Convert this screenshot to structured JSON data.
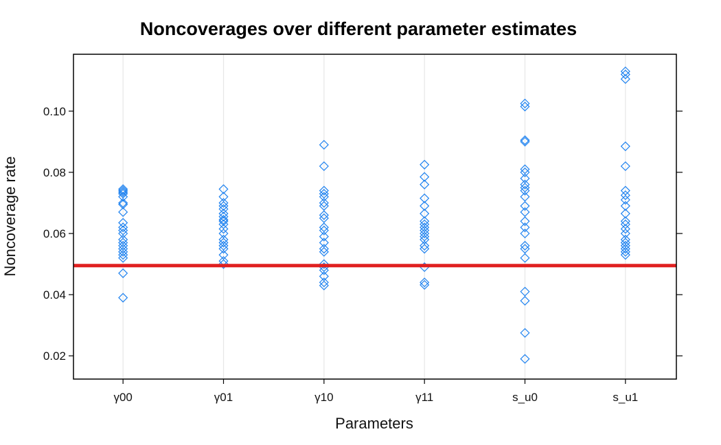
{
  "chart_data": {
    "type": "scatter",
    "title": "Noncoverages over different parameter estimates",
    "xlabel": "Parameters",
    "ylabel": "Noncoverage rate",
    "categories": [
      "γ00",
      "γ01",
      "γ10",
      "γ11",
      "s_u0",
      "s_u1"
    ],
    "ylim": [
      0.0124,
      0.1186
    ],
    "yticks": [
      0.02,
      0.04,
      0.06,
      0.08,
      0.1
    ],
    "ytick_labels": [
      "0.02",
      "0.04",
      "0.06",
      "0.08",
      "0.10"
    ],
    "grid": "vertical",
    "reference_line": {
      "y": 0.0495,
      "color": "#e02020"
    },
    "marker_color": "#1e82f0",
    "series": [
      {
        "category": "γ00",
        "values": [
          0.0745,
          0.074,
          0.0735,
          0.073,
          0.072,
          0.07,
          0.0695,
          0.067,
          0.0635,
          0.062,
          0.061,
          0.06,
          0.058,
          0.057,
          0.056,
          0.055,
          0.054,
          0.053,
          0.052,
          0.047,
          0.039
        ]
      },
      {
        "category": "γ01",
        "values": [
          0.0745,
          0.072,
          0.07,
          0.069,
          0.068,
          0.0665,
          0.0655,
          0.0645,
          0.064,
          0.063,
          0.0615,
          0.06,
          0.058,
          0.057,
          0.056,
          0.055,
          0.053,
          0.051,
          0.05
        ]
      },
      {
        "category": "γ10",
        "values": [
          0.089,
          0.082,
          0.074,
          0.073,
          0.072,
          0.07,
          0.069,
          0.066,
          0.065,
          0.062,
          0.061,
          0.059,
          0.057,
          0.055,
          0.054,
          0.05,
          0.049,
          0.048,
          0.046,
          0.044,
          0.043
        ]
      },
      {
        "category": "γ11",
        "values": [
          0.0825,
          0.0785,
          0.076,
          0.0715,
          0.069,
          0.0665,
          0.064,
          0.063,
          0.062,
          0.061,
          0.06,
          0.059,
          0.058,
          0.056,
          0.055,
          0.049,
          0.044,
          0.0432
        ]
      },
      {
        "category": "s_u0",
        "values": [
          0.1025,
          0.1015,
          0.0905,
          0.09,
          0.081,
          0.08,
          0.078,
          0.076,
          0.075,
          0.074,
          0.072,
          0.069,
          0.067,
          0.064,
          0.062,
          0.06,
          0.056,
          0.055,
          0.052,
          0.041,
          0.038,
          0.0275,
          0.019
        ]
      },
      {
        "category": "s_u1",
        "values": [
          0.113,
          0.112,
          0.1105,
          0.0885,
          0.082,
          0.074,
          0.0725,
          0.071,
          0.069,
          0.0665,
          0.064,
          0.063,
          0.0615,
          0.06,
          0.058,
          0.057,
          0.056,
          0.055,
          0.054,
          0.053
        ]
      }
    ]
  }
}
